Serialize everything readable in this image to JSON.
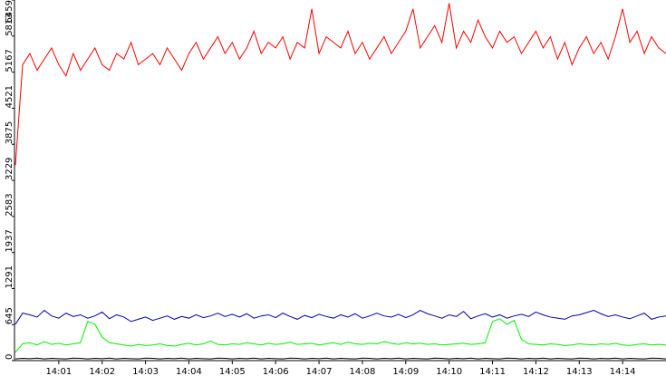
{
  "chart_data": {
    "type": "line",
    "categories": [
      null,
      null,
      null,
      null,
      null,
      null,
      "14:01",
      null,
      null,
      null,
      null,
      null,
      "14:02",
      null,
      null,
      null,
      null,
      null,
      "14:03",
      null,
      null,
      null,
      null,
      null,
      "14:04",
      null,
      null,
      null,
      null,
      null,
      "14:05",
      null,
      null,
      null,
      null,
      null,
      "14:06",
      null,
      null,
      null,
      null,
      null,
      "14:07",
      null,
      null,
      null,
      null,
      null,
      "14:08",
      null,
      null,
      null,
      null,
      null,
      "14:09",
      null,
      null,
      null,
      null,
      null,
      "14:10",
      null,
      null,
      null,
      null,
      null,
      "14:11",
      null,
      null,
      null,
      null,
      null,
      "14:12",
      null,
      null,
      null,
      null,
      null,
      "14:13",
      null,
      null,
      null,
      null,
      null,
      "14:14",
      null,
      null,
      null,
      null,
      null,
      null
    ],
    "ylim": [
      0,
      6459
    ],
    "yticks": [
      0,
      645,
      1291,
      1937,
      2583,
      3229,
      3875,
      4521,
      5167,
      5813,
      6459
    ],
    "grid": false,
    "series": [
      {
        "color": "#ff0000",
        "values": [
          3500,
          5300,
          5500,
          5200,
          5400,
          5600,
          5300,
          5100,
          5500,
          5200,
          5400,
          5600,
          5300,
          5200,
          5500,
          5400,
          5700,
          5300,
          5400,
          5500,
          5300,
          5600,
          5400,
          5200,
          5500,
          5700,
          5400,
          5600,
          5800,
          5500,
          5700,
          5400,
          5600,
          5900,
          5500,
          5700,
          5600,
          5800,
          5400,
          5700,
          5600,
          6300,
          5500,
          5800,
          5700,
          5600,
          5900,
          5500,
          5700,
          5400,
          5600,
          5800,
          5500,
          5700,
          5900,
          6300,
          5600,
          5800,
          6000,
          5700,
          6400,
          5600,
          5900,
          5700,
          6100,
          5800,
          5600,
          5900,
          5700,
          5800,
          5500,
          5700,
          5900,
          5600,
          5800,
          5400,
          5700,
          5300,
          5600,
          5800,
          5500,
          5700,
          5400,
          5800,
          6300,
          5700,
          5900,
          5500,
          5800,
          5600,
          5500
        ]
      },
      {
        "color": "#0000aa",
        "values": [
          650,
          850,
          820,
          780,
          900,
          800,
          760,
          850,
          790,
          820,
          760,
          800,
          870,
          750,
          820,
          780,
          700,
          740,
          780,
          720,
          760,
          800,
          740,
          790,
          760,
          820,
          770,
          800,
          850,
          790,
          830,
          780,
          840,
          760,
          800,
          820,
          770,
          850,
          790,
          740,
          810,
          770,
          830,
          790,
          760,
          820,
          780,
          840,
          760,
          800,
          850,
          800,
          780,
          830,
          770,
          820,
          900,
          840,
          800,
          760,
          820,
          790,
          880,
          750,
          800,
          840,
          780,
          820,
          760,
          800,
          830,
          790,
          870,
          820,
          780,
          760,
          740,
          800,
          820,
          860,
          900,
          840,
          790,
          820,
          780,
          750,
          800,
          850,
          740,
          780,
          800
        ]
      },
      {
        "color": "#00ee00",
        "values": [
          150,
          300,
          320,
          280,
          340,
          290,
          310,
          280,
          300,
          320,
          700,
          650,
          420,
          320,
          300,
          280,
          260,
          290,
          270,
          280,
          300,
          270,
          260,
          290,
          310,
          280,
          300,
          350,
          290,
          280,
          300,
          290,
          320,
          300,
          280,
          310,
          290,
          300,
          330,
          290,
          300,
          310,
          280,
          300,
          320,
          290,
          330,
          300,
          290,
          310,
          300,
          340,
          310,
          290,
          320,
          300,
          310,
          290,
          300,
          280,
          290,
          300,
          310,
          290,
          300,
          320,
          700,
          750,
          650,
          720,
          380,
          300,
          290,
          280,
          300,
          290,
          270,
          280,
          300,
          290,
          280,
          300,
          290,
          310,
          280,
          270,
          290,
          300,
          280,
          290,
          280
        ]
      },
      {
        "color": "#000000",
        "values": [
          30,
          40,
          35,
          45,
          30,
          40,
          35,
          30,
          45,
          40,
          30,
          40,
          35,
          45,
          30,
          40,
          35,
          30,
          45,
          40,
          30,
          40,
          35,
          45,
          30,
          40,
          35,
          30,
          45,
          40,
          30,
          40,
          35,
          45,
          30,
          40,
          35,
          30,
          45,
          40,
          30,
          40,
          35,
          45,
          30,
          40,
          35,
          30,
          45,
          40,
          30,
          40,
          35,
          45,
          30,
          40,
          35,
          30,
          45,
          40,
          30,
          40,
          35,
          45,
          30,
          40,
          35,
          30,
          45,
          40,
          30,
          40,
          35,
          45,
          30,
          40,
          35,
          30,
          45,
          40,
          30,
          40,
          35,
          45,
          30,
          40,
          35,
          30,
          45,
          40,
          30
        ]
      }
    ]
  }
}
